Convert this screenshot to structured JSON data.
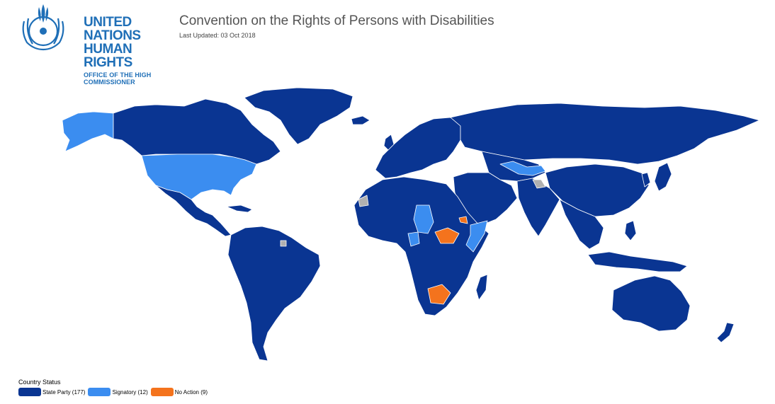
{
  "logo": {
    "line1": "UNITED NATIONS",
    "line2": "HUMAN RIGHTS",
    "line3": "OFFICE OF THE HIGH COMMISSIONER"
  },
  "header": {
    "title": "Convention on the Rights of Persons with Disabilities",
    "last_updated": "Last Updated: 03 Oct 2018"
  },
  "legend": {
    "title": "Country Status",
    "items": [
      {
        "label": "State Party (177)",
        "color": "#0a3592"
      },
      {
        "label": "Signatory (12)",
        "color": "#3b8df0"
      },
      {
        "label": "No Action (9)",
        "color": "#f4731d"
      }
    ]
  },
  "colors": {
    "state_party": "#0a3592",
    "signatory": "#3b8df0",
    "no_action": "#f4731d",
    "no_data": "#b0b0b0",
    "border": "#ffffff"
  }
}
